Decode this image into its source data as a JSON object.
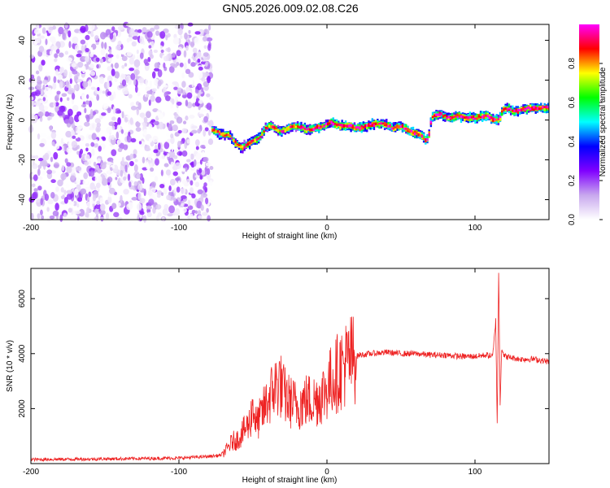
{
  "title": "GN05.2026.009.02.08.C26",
  "chart_data": [
    {
      "type": "heatmap",
      "xlabel": "Height of straight line (km)",
      "ylabel": "Frequency (Hz)",
      "xlim": [
        -200,
        150
      ],
      "ylim": [
        -50,
        48
      ],
      "xticks": [
        -200,
        -100,
        0,
        100
      ],
      "yticks": [
        40,
        20,
        0,
        -20,
        -40
      ],
      "colorbar": {
        "label": "Normalized spectral amplitude",
        "range": [
          0,
          1
        ],
        "ticks": [
          0.0,
          0.2,
          0.4,
          0.6,
          0.8
        ],
        "colormap": [
          "#ffffff",
          "#c8a8ee",
          "#8000ff",
          "#0000ff",
          "#00ffff",
          "#00ff00",
          "#ffff00",
          "#ff0000",
          "#ff00ff"
        ]
      },
      "noise_region_x": [
        -200,
        -78
      ],
      "signal_track": {
        "x": [
          -78,
          -72,
          -66,
          -62,
          -58,
          -52,
          -46,
          -42,
          -38,
          -32,
          -26,
          -20,
          -14,
          -8,
          -2,
          2,
          8,
          14,
          20,
          26,
          32,
          38,
          44,
          50,
          56,
          62,
          66,
          68,
          70,
          72,
          76,
          82,
          88,
          94,
          100,
          104,
          108,
          112,
          116,
          118,
          122,
          126,
          130,
          136,
          142,
          150
        ],
        "y": [
          -5,
          -7,
          -8,
          -12,
          -14,
          -11,
          -9,
          -4,
          -3,
          -6,
          -4,
          -3,
          -5,
          -4,
          -3,
          -1,
          -3,
          -3,
          -4,
          -3,
          -2,
          -2,
          -4,
          -3,
          -6,
          -7,
          -10,
          -9,
          1,
          2,
          3,
          1,
          2,
          1,
          1,
          2,
          2,
          0,
          0,
          5,
          6,
          4,
          5,
          6,
          6,
          6
        ]
      }
    },
    {
      "type": "line",
      "xlabel": "Height of straight line (km)",
      "ylabel": "SNR (10 * v/v)",
      "xlim": [
        -200,
        150
      ],
      "ylim": [
        0,
        7100
      ],
      "xticks": [
        -200,
        -100,
        0,
        100
      ],
      "yticks": [
        2000,
        4000,
        6000
      ],
      "color": "#ee2222",
      "envelope": {
        "x": [
          -200,
          -150,
          -100,
          -80,
          -72,
          -68,
          -64,
          -60,
          -56,
          -52,
          -50,
          -48,
          -44,
          -40,
          -36,
          -32,
          -30,
          -26,
          -20,
          -14,
          -8,
          -2,
          4,
          10,
          16,
          22,
          30,
          40,
          50,
          60,
          70,
          80,
          90,
          100,
          108,
          112,
          114,
          115,
          116,
          117,
          118,
          120,
          130,
          140,
          150
        ],
        "y": [
          150,
          170,
          200,
          260,
          300,
          500,
          800,
          900,
          1200,
          1500,
          2200,
          1400,
          1800,
          2300,
          2700,
          3000,
          2600,
          2300,
          2100,
          2300,
          2300,
          2600,
          3100,
          3500,
          3800,
          3950,
          4000,
          4050,
          4000,
          4000,
          3950,
          3950,
          3900,
          3900,
          3950,
          3900,
          5200,
          1500,
          7000,
          2200,
          4200,
          3900,
          3800,
          3800,
          3700
        ]
      }
    }
  ]
}
